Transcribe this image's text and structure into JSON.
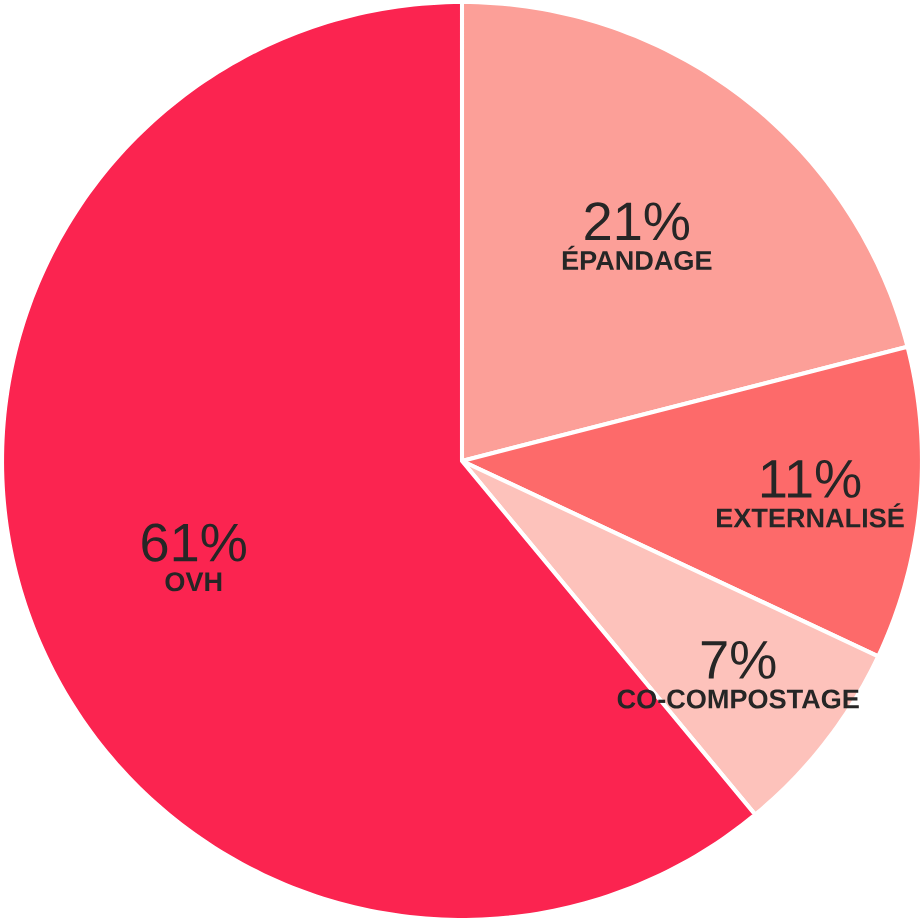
{
  "chart_data": {
    "type": "pie",
    "categories": [
      "ÉPANDAGE",
      "EXTERNALISÉ",
      "CO-COMPOSTAGE",
      "OVH"
    ],
    "values": [
      21,
      11,
      7,
      61
    ],
    "value_labels": [
      "21%",
      "11%",
      "7%",
      "61%"
    ],
    "colors": [
      "#fc9f98",
      "#fd6a6a",
      "#fdc2bb",
      "#fb2450"
    ]
  }
}
